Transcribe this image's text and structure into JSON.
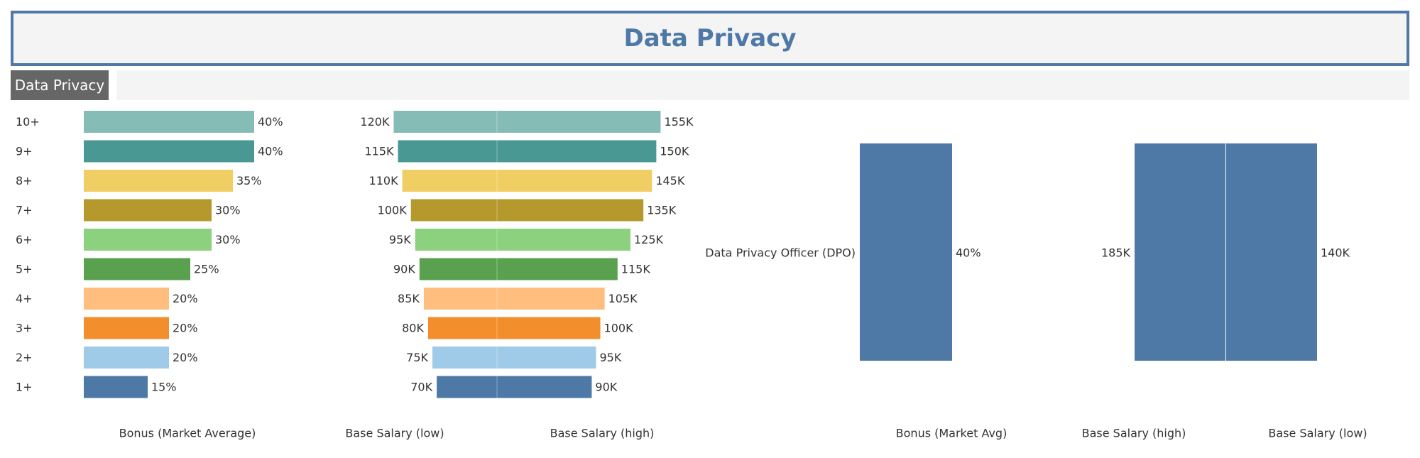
{
  "header": {
    "title": "Data Privacy"
  },
  "section": {
    "label": "Data Privacy"
  },
  "colors": {
    "accent": "#4e79a7",
    "header_bg": "#f4f4f4",
    "tab_bg": "#666666",
    "experience_palette": [
      "#86bcb6",
      "#499894",
      "#f1ce63",
      "#b6992d",
      "#8cd17d",
      "#59a14f",
      "#ffbe7d",
      "#f28e2b",
      "#a0cbe8",
      "#4e79a7"
    ]
  },
  "chart_data": [
    {
      "type": "bar",
      "orientation": "horizontal",
      "categories": [
        "10+",
        "9+",
        "8+",
        "7+",
        "6+",
        "5+",
        "4+",
        "3+",
        "2+",
        "1+"
      ],
      "series": [
        {
          "name": "Bonus (Market Average)",
          "values": [
            40,
            40,
            35,
            30,
            30,
            25,
            20,
            20,
            20,
            15
          ],
          "unit": "%"
        }
      ],
      "value_labels": [
        "40%",
        "40%",
        "35%",
        "30%",
        "30%",
        "25%",
        "20%",
        "20%",
        "20%",
        "15%"
      ],
      "xlabel": "Bonus (Market Average)",
      "xlim": [
        0,
        40
      ]
    },
    {
      "type": "bar",
      "orientation": "horizontal",
      "layout": "butterfly",
      "categories": [
        "10+",
        "9+",
        "8+",
        "7+",
        "6+",
        "5+",
        "4+",
        "3+",
        "2+",
        "1+"
      ],
      "series": [
        {
          "name": "Base Salary (low)",
          "values": [
            120,
            115,
            110,
            100,
            95,
            90,
            85,
            80,
            75,
            70
          ],
          "unit": "K"
        },
        {
          "name": "Base Salary (high)",
          "values": [
            155,
            150,
            145,
            135,
            125,
            115,
            105,
            100,
            95,
            90
          ],
          "unit": "K"
        }
      ],
      "low_labels": [
        "120K",
        "115K",
        "110K",
        "100K",
        "95K",
        "90K",
        "85K",
        "80K",
        "75K",
        "70K"
      ],
      "high_labels": [
        "155K",
        "150K",
        "145K",
        "135K",
        "125K",
        "115K",
        "105K",
        "100K",
        "95K",
        "90K"
      ],
      "xlabels": [
        "Base Salary (low)",
        "Base Salary (high)"
      ]
    },
    {
      "type": "bar",
      "categories": [
        "Data Privacy Officer (DPO)"
      ],
      "series": [
        {
          "name": "Bonus (Market Avg)",
          "values": [
            40
          ],
          "unit": "%"
        }
      ],
      "value_labels": [
        "40%"
      ],
      "xlabel": "Bonus (Market Avg)"
    },
    {
      "type": "bar",
      "layout": "butterfly",
      "categories": [
        "Data Privacy Officer (DPO)"
      ],
      "series": [
        {
          "name": "Base Salary (high)",
          "values": [
            185
          ],
          "unit": "K"
        },
        {
          "name": "Base Salary (low)",
          "values": [
            140
          ],
          "unit": "K"
        }
      ],
      "value_labels": [
        "185K",
        "140K"
      ],
      "xlabels": [
        "Base Salary (high)",
        "Base Salary (low)"
      ]
    }
  ]
}
